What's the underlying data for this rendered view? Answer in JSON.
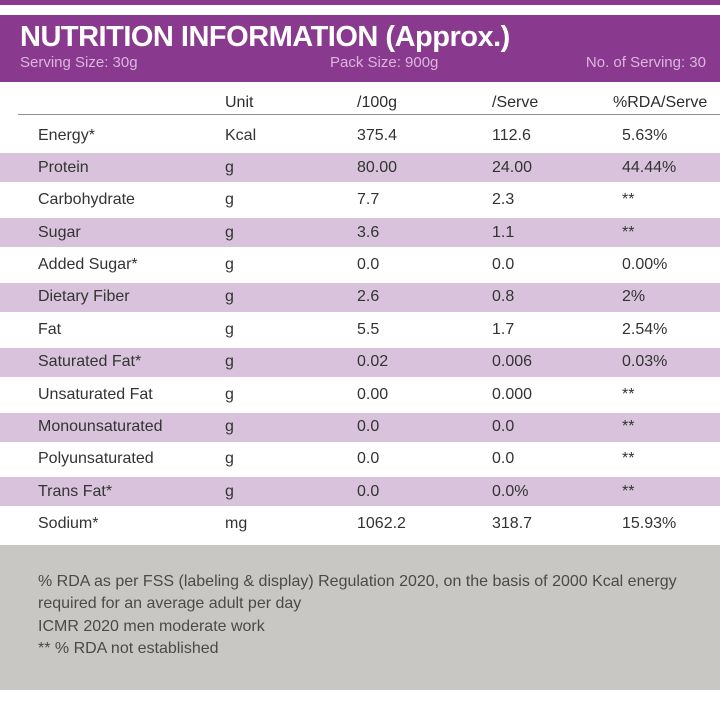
{
  "header": {
    "title": "NUTRITION INFORMATION (Approx.)",
    "serving_size": "Serving Size: 30g",
    "pack_size": "Pack Size: 900g",
    "no_of_serving": "No. of Serving: 30"
  },
  "table": {
    "columns": [
      "",
      "Unit",
      "/100g",
      "/Serve",
      "%RDA/Serve"
    ],
    "rows": [
      {
        "name": "Energy*",
        "unit": "Kcal",
        "per100g": "375.4",
        "perServe": "112.6",
        "rda": "5.63%"
      },
      {
        "name": "Protein",
        "unit": "g",
        "per100g": "80.00",
        "perServe": "24.00",
        "rda": "44.44%"
      },
      {
        "name": "Carbohydrate",
        "unit": "g",
        "per100g": "7.7",
        "perServe": "2.3",
        "rda": "**"
      },
      {
        "name": "Sugar",
        "unit": "g",
        "per100g": "3.6",
        "perServe": "1.1",
        "rda": "**"
      },
      {
        "name": "Added Sugar*",
        "unit": "g",
        "per100g": "0.0",
        "perServe": "0.0",
        "rda": "0.00%"
      },
      {
        "name": "Dietary Fiber",
        "unit": "g",
        "per100g": "2.6",
        "perServe": "0.8",
        "rda": "2%"
      },
      {
        "name": "Fat",
        "unit": "g",
        "per100g": "5.5",
        "perServe": "1.7",
        "rda": "2.54%"
      },
      {
        "name": "Saturated Fat*",
        "unit": "g",
        "per100g": "0.02",
        "perServe": "0.006",
        "rda": "0.03%"
      },
      {
        "name": "Unsaturated Fat",
        "unit": "g",
        "per100g": "0.00",
        "perServe": "0.000",
        "rda": "**"
      },
      {
        "name": "Monounsaturated",
        "unit": "g",
        "per100g": "0.0",
        "perServe": "0.0",
        "rda": "**"
      },
      {
        "name": "Polyunsaturated",
        "unit": "g",
        "per100g": "0.0",
        "perServe": "0.0",
        "rda": "**"
      },
      {
        "name": "Trans Fat*",
        "unit": "g",
        "per100g": "0.0",
        "perServe": "0.0%",
        "rda": "**"
      },
      {
        "name": "Sodium*",
        "unit": "mg",
        "per100g": "1062.2",
        "perServe": "318.7",
        "rda": "15.93%"
      }
    ]
  },
  "footnotes": {
    "lines": [
      "% RDA as per FSS (labeling & display) Regulation 2020, on the basis of 2000 Kcal energy",
      "required for an average adult per day",
      "ICMR 2020 men moderate work",
      "** % RDA not established"
    ]
  },
  "colors": {
    "header_purple": "#8a3a8e",
    "band_lavender": "#d9c2dc",
    "footer_gray": "#c8c7c4",
    "subheader_text": "#dcb4df"
  }
}
